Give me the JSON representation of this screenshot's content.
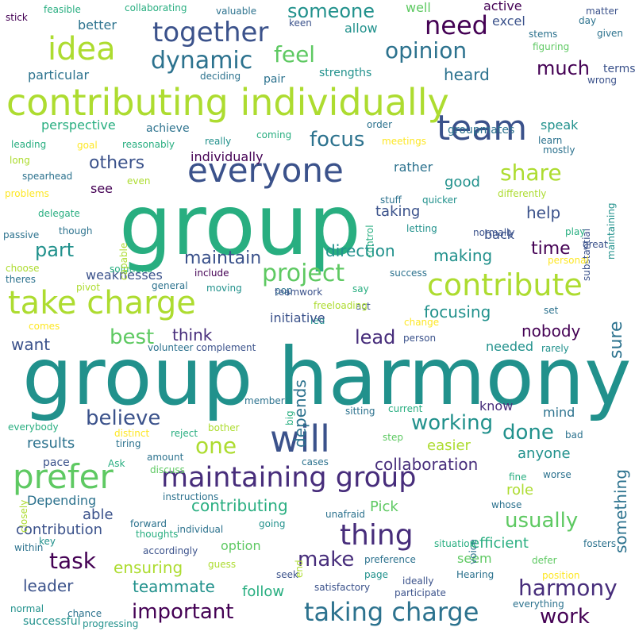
{
  "colors": {
    "background": "#ffffff",
    "palette": [
      "#440154",
      "#472d7b",
      "#3b528b",
      "#2c728e",
      "#21918c",
      "#28ae80",
      "#5ec962",
      "#addc30",
      "#fde725"
    ]
  },
  "words": [
    "group harmony",
    "group",
    "contributing individually",
    "maintaining group",
    "team",
    "take charge",
    "contribute",
    "prefer",
    "everyone",
    "will",
    "thing",
    "taking charge",
    "idea",
    "together",
    "dynamic",
    "project",
    "need",
    "opinion",
    "feel",
    "someone",
    "share",
    "focus",
    "harmony",
    "usually",
    "work",
    "task",
    "important",
    "lead",
    "make",
    "believe",
    "working",
    "done",
    "best",
    "one",
    "maintain",
    "part",
    "others",
    "help",
    "much",
    "heard",
    "direction",
    "making",
    "time",
    "focusing",
    "nobody",
    "sure",
    "collaboration",
    "depends",
    "want",
    "think",
    "results",
    "contributing",
    "contribution",
    "leader",
    "teammate",
    "ensuring",
    "efficient",
    "role",
    "anyone",
    "something",
    "easier",
    "needed",
    "Pick",
    "Depending",
    "able",
    "follow",
    "option",
    "seem",
    "individually",
    "rather",
    "good",
    "taking",
    "see",
    "perspective",
    "achieve",
    "groupmates",
    "strengths",
    "pair",
    "particular",
    "better",
    "excel",
    "well",
    "active",
    "allow",
    "terms",
    "matter",
    "day",
    "given",
    "stems",
    "figuring",
    "wrong",
    "deciding",
    "valuable",
    "keen",
    "collaborating",
    "feasible",
    "stick",
    "weaknesses",
    "include",
    "moving",
    "general",
    "pop",
    "pivot",
    "theres",
    "choose",
    "solutions",
    "capable",
    "passive",
    "though",
    "delegate",
    "problems",
    "even",
    "spearhead",
    "long",
    "goal",
    "leading",
    "reasonably",
    "really",
    "coming",
    "meetings",
    "order",
    "speak",
    "learn",
    "mostly",
    "substantial",
    "maintaining",
    "differently",
    "control",
    "back",
    "stuff",
    "quicker",
    "letting",
    "normally",
    "play",
    "great",
    "personal",
    "success",
    "say",
    "teamwork",
    "act",
    "freeloading",
    "led",
    "change",
    "set",
    "initiative",
    "rarely",
    "person",
    "comes",
    "volunteer",
    "complement",
    "big",
    "member",
    "know",
    "mind",
    "sitting",
    "current",
    "everybody",
    "closely",
    "distinct",
    "tiring",
    "Ask",
    "reject",
    "bother",
    "step",
    "bad",
    "pace",
    "amount",
    "discuss",
    "cases",
    "fine",
    "worse",
    "forward",
    "instructions",
    "whose",
    "voice",
    "unafraid",
    "going",
    "thoughts",
    "individual",
    "accordingly",
    "key",
    "within",
    "guess",
    "end",
    "situation",
    "preference",
    "seek",
    "page",
    "Hearing",
    "ideally",
    "satisfactory",
    "participate",
    "position",
    "everything",
    "defer",
    "fosters",
    "normal",
    "chance",
    "successful",
    "progressing"
  ]
}
